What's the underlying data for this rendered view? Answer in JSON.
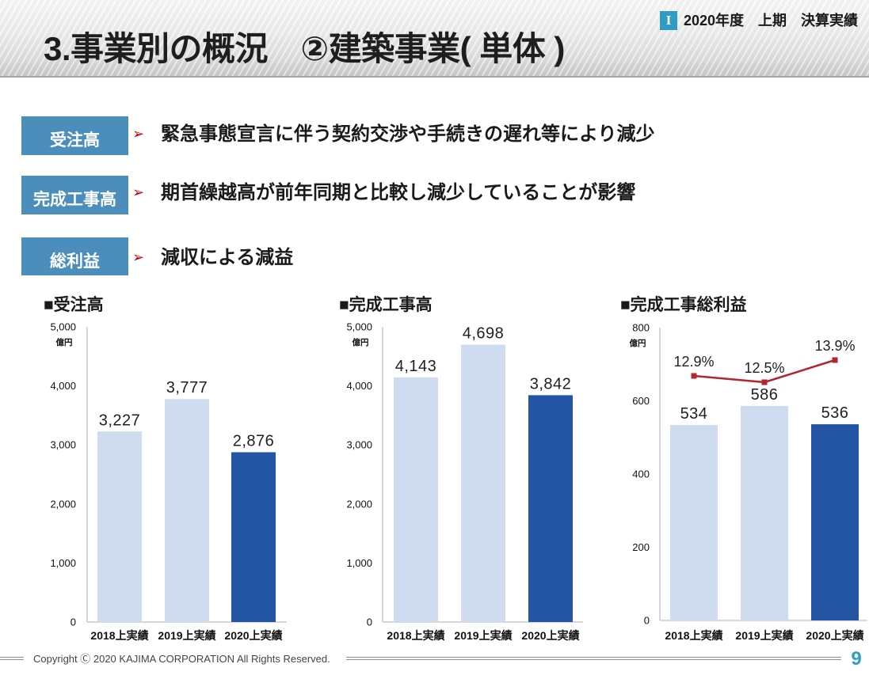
{
  "header": {
    "title": "3.事業別の概況　②建築事業( 単体 )",
    "section_badge": "I",
    "period_label": "2020年度　上期　決算実績"
  },
  "summary": {
    "bullet_icon": "arrow-bullet-icon",
    "items": [
      {
        "label": "受注高",
        "text": "緊急事態宣言に伴う契約交渉や手続きの遅れ等により減少"
      },
      {
        "label": "完成工事高",
        "text": "期首繰越高が前年同期と比較し減少していることが影響"
      },
      {
        "label": "総利益",
        "text": "減収による減益"
      }
    ]
  },
  "colors": {
    "label_box": "#4b8dbb",
    "accent": "#2f9cc6",
    "bullet_arrow": "#c00000",
    "bar_prior": "#cfdbef",
    "bar_current": "#2455a4",
    "margin_line": "#b3262d"
  },
  "chart_data": [
    {
      "type": "bar",
      "title": "■受注高",
      "unit": "億円",
      "categories": [
        "2018上実績",
        "2019上実績",
        "2020上実績"
      ],
      "values": [
        3227,
        3777,
        2876
      ],
      "value_labels": [
        "3,227",
        "3,777",
        "2,876"
      ],
      "ylim": [
        0,
        5000
      ],
      "yticks": [
        0,
        1000,
        2000,
        3000,
        4000,
        5000
      ],
      "ytick_labels": [
        "0",
        "1,000",
        "2,000",
        "3,000",
        "4,000",
        "5,000"
      ],
      "grid": false,
      "bar_colors": [
        "#cfdbef",
        "#cfdbef",
        "#2455a4"
      ]
    },
    {
      "type": "bar",
      "title": "■完成工事高",
      "unit": "億円",
      "categories": [
        "2018上実績",
        "2019上実績",
        "2020上実績"
      ],
      "values": [
        4143,
        4698,
        3842
      ],
      "value_labels": [
        "4,143",
        "4,698",
        "3,842"
      ],
      "ylim": [
        0,
        5000
      ],
      "yticks": [
        0,
        1000,
        2000,
        3000,
        4000,
        5000
      ],
      "ytick_labels": [
        "0",
        "1,000",
        "2,000",
        "3,000",
        "4,000",
        "5,000"
      ],
      "grid": false,
      "bar_colors": [
        "#cfdbef",
        "#cfdbef",
        "#2455a4"
      ]
    },
    {
      "type": "bar",
      "title": "■完成工事総利益",
      "unit": "億円",
      "categories": [
        "2018上実績",
        "2019上実績",
        "2020上実績"
      ],
      "values": [
        534,
        586,
        536
      ],
      "value_labels": [
        "534",
        "586",
        "536"
      ],
      "ylim": [
        0,
        800
      ],
      "yticks": [
        0,
        200,
        400,
        600,
        800
      ],
      "ytick_labels": [
        "0",
        "200",
        "400",
        "600",
        "800"
      ],
      "grid": false,
      "bar_colors": [
        "#cfdbef",
        "#cfdbef",
        "#2455a4"
      ],
      "line_series": {
        "type": "line",
        "secondary_axis": true,
        "values": [
          12.9,
          12.5,
          13.9
        ],
        "value_labels": [
          "12.9%",
          "12.5%",
          "13.9%"
        ],
        "color": "#b3262d"
      }
    }
  ],
  "footer": {
    "copyright": "Copyright Ⓒ 2020 KAJIMA CORPORATION All Rights Reserved.",
    "page_number": "9"
  }
}
